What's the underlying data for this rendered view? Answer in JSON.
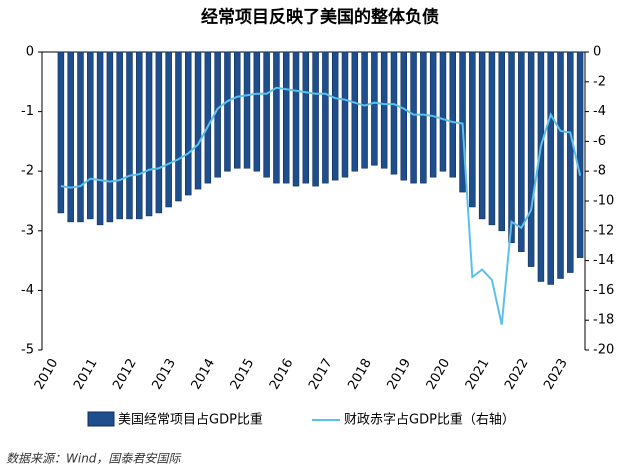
{
  "chart_data": {
    "type": "bar_line",
    "title": "经常项目反映了美国的整体负债",
    "source": "数据来源：Wind，国泰君安国际",
    "categories": [
      "2010",
      null,
      null,
      null,
      "2011",
      null,
      null,
      null,
      "2012",
      null,
      null,
      null,
      "2013",
      null,
      null,
      null,
      "2014",
      null,
      null,
      null,
      "2015",
      null,
      null,
      null,
      "2016",
      null,
      null,
      null,
      "2017",
      null,
      null,
      null,
      "2018",
      null,
      null,
      null,
      "2019",
      null,
      null,
      null,
      "2020",
      null,
      null,
      null,
      "2021",
      null,
      null,
      null,
      "2022",
      null,
      null,
      null,
      "2023",
      null
    ],
    "series": [
      {
        "name": "美国经常项目占GDP比重",
        "color": "#1f4e8c",
        "axis": "y",
        "values": [
          -2.7,
          -2.85,
          -2.85,
          -2.8,
          -2.9,
          -2.85,
          -2.8,
          -2.8,
          -2.8,
          -2.75,
          -2.7,
          -2.6,
          -2.5,
          -2.4,
          -2.3,
          -2.2,
          -2.1,
          -2.0,
          -1.95,
          -1.95,
          -2.0,
          -2.1,
          -2.2,
          -2.2,
          -2.25,
          -2.2,
          -2.25,
          -2.2,
          -2.15,
          -2.1,
          -2.0,
          -1.95,
          -1.9,
          -1.95,
          -2.05,
          -2.15,
          -2.2,
          -2.2,
          -2.1,
          -2.0,
          -2.1,
          -2.35,
          -2.6,
          -2.8,
          -2.9,
          -3.0,
          -3.2,
          -3.35,
          -3.6,
          -3.85,
          -3.9,
          -3.8,
          -3.7,
          -3.45
        ]
      },
      {
        "name": "财政赤字占GDP比重（右轴）",
        "color": "#5bc0eb",
        "axis": "y2",
        "values": [
          -9.0,
          -9.1,
          -9.0,
          -8.5,
          -8.6,
          -8.7,
          -8.6,
          -8.3,
          -8.2,
          -7.9,
          -7.8,
          -7.5,
          -7.2,
          -6.8,
          -6.2,
          -5.0,
          -3.8,
          -3.3,
          -3.0,
          -2.9,
          -2.8,
          -2.8,
          -2.4,
          -2.5,
          -2.6,
          -2.7,
          -2.8,
          -2.8,
          -3.1,
          -3.2,
          -3.4,
          -3.6,
          -3.4,
          -3.5,
          -3.5,
          -3.8,
          -4.2,
          -4.2,
          -4.3,
          -4.5,
          -4.7,
          -4.8,
          -15.1,
          -14.6,
          -15.3,
          -18.3,
          -11.4,
          -11.8,
          -10.6,
          -6.3,
          -4.2,
          -5.3,
          -5.4,
          -8.3
        ]
      }
    ],
    "ylim": [
      -5,
      0
    ],
    "yticks": [
      0,
      -1,
      -2,
      -3,
      -4,
      -5
    ],
    "y2lim": [
      -20,
      0
    ],
    "y2ticks": [
      0,
      -2,
      -4,
      -6,
      -8,
      -10,
      -12,
      -14,
      -16,
      -18,
      -20
    ]
  }
}
